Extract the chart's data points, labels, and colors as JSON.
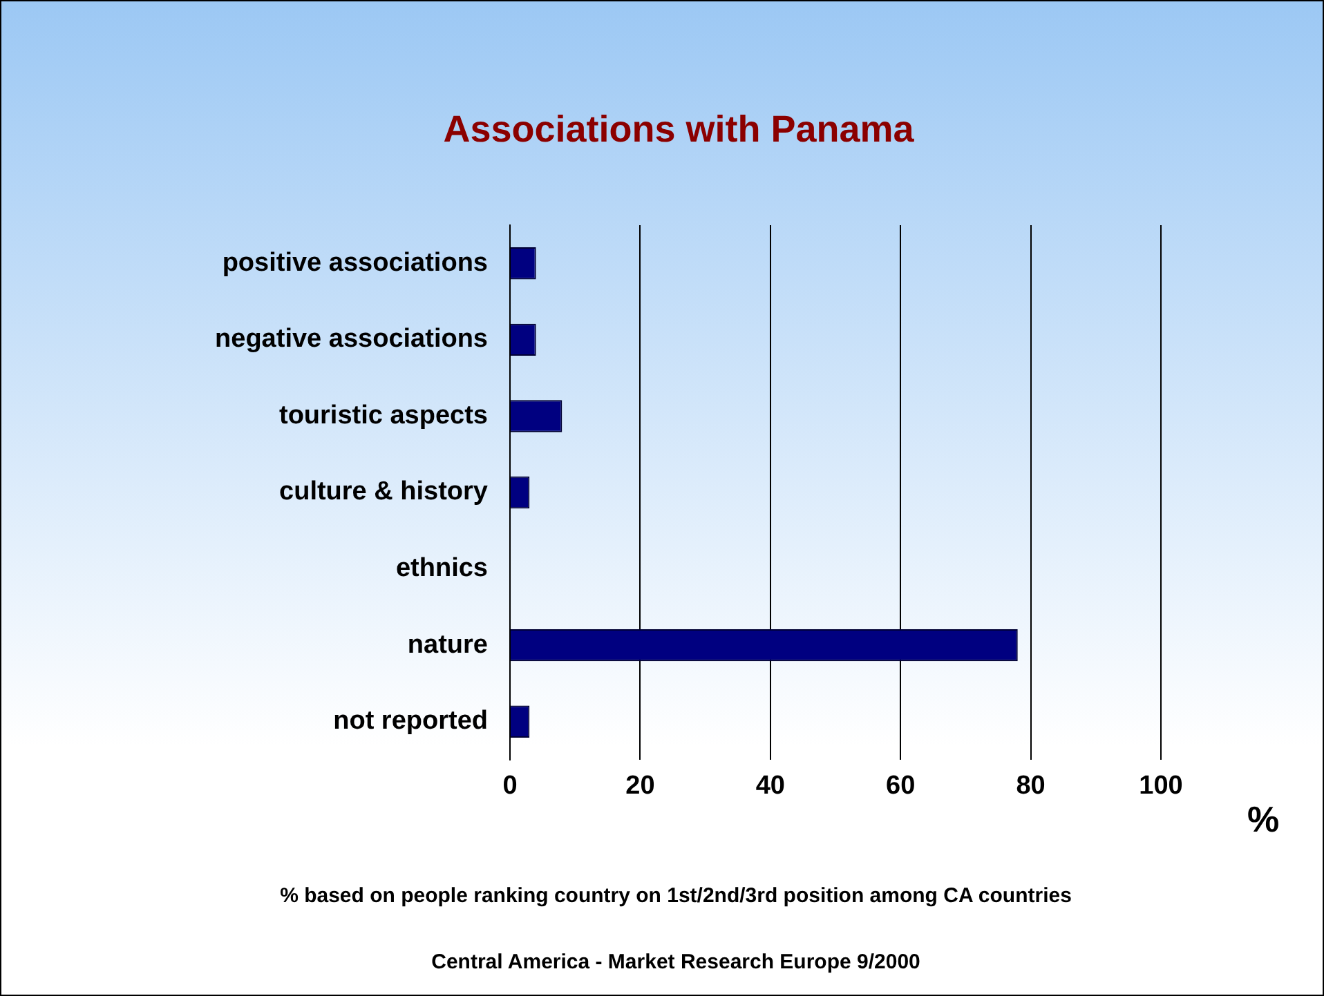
{
  "chart_data": {
    "type": "bar",
    "orientation": "horizontal",
    "title": "Associations with Panama",
    "xlabel": "%",
    "categories": [
      "positive associations",
      "negative associations",
      "touristic aspects",
      "culture & history",
      "ethnics",
      "nature",
      "not reported"
    ],
    "values": [
      4,
      4,
      8,
      3,
      0,
      78,
      3
    ],
    "color": "#000080",
    "xlim": [
      0,
      100
    ],
    "xticks": [
      0,
      20,
      40,
      60,
      80,
      100
    ],
    "grid": "x",
    "legend": false,
    "annotations": [
      "% based on people ranking country on 1st/2nd/3rd position among CA countries",
      "Central America - Market Research Europe 9/2000"
    ]
  }
}
